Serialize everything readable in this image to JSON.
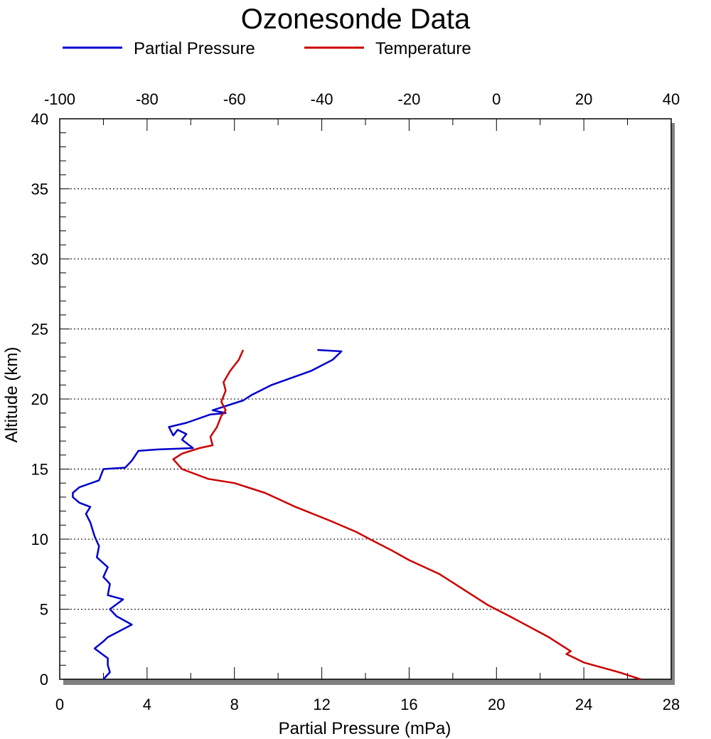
{
  "chart_data": {
    "type": "line",
    "title": "Ozonesonde Data",
    "xlabel_bottom": "Partial Pressure (mPa)",
    "ylabel": "Altitude (km)",
    "xlim_bottom": [
      0,
      28
    ],
    "xticks_bottom": [
      "0",
      "4",
      "8",
      "12",
      "16",
      "20",
      "24",
      "28"
    ],
    "xlim_top": [
      -100,
      40
    ],
    "xticks_top": [
      "-100",
      "-80",
      "-60",
      "-40",
      "-20",
      "0",
      "20",
      "40"
    ],
    "ylim": [
      0,
      40
    ],
    "yticks": [
      "0",
      "5",
      "10",
      "15",
      "20",
      "25",
      "30",
      "35",
      "40"
    ],
    "grid": "horizontal dotted at major y ticks",
    "legend": "top",
    "series": [
      {
        "name": "Partial Pressure",
        "axis": "bottom",
        "color": "#0000cc",
        "points": [
          [
            2.0,
            0.0
          ],
          [
            2.3,
            0.5
          ],
          [
            2.2,
            1.0
          ],
          [
            2.2,
            1.5
          ],
          [
            1.6,
            2.2
          ],
          [
            2.0,
            2.7
          ],
          [
            2.2,
            3.0
          ],
          [
            3.3,
            3.9
          ],
          [
            2.6,
            4.5
          ],
          [
            2.3,
            5.0
          ],
          [
            2.9,
            5.7
          ],
          [
            2.2,
            6.0
          ],
          [
            2.3,
            6.8
          ],
          [
            2.0,
            7.3
          ],
          [
            2.2,
            8.0
          ],
          [
            1.7,
            8.7
          ],
          [
            1.8,
            9.5
          ],
          [
            1.6,
            10.2
          ],
          [
            1.4,
            11.2
          ],
          [
            1.2,
            11.8
          ],
          [
            1.4,
            12.3
          ],
          [
            0.9,
            12.6
          ],
          [
            0.6,
            13.0
          ],
          [
            0.6,
            13.3
          ],
          [
            0.9,
            13.7
          ],
          [
            1.8,
            14.2
          ],
          [
            2.0,
            15.0
          ],
          [
            3.0,
            15.1
          ],
          [
            3.3,
            15.6
          ],
          [
            3.6,
            16.3
          ],
          [
            4.5,
            16.4
          ],
          [
            6.1,
            16.5
          ],
          [
            5.6,
            17.1
          ],
          [
            5.8,
            17.5
          ],
          [
            5.4,
            17.8
          ],
          [
            5.2,
            17.4
          ],
          [
            5.0,
            18.0
          ],
          [
            5.8,
            18.3
          ],
          [
            6.9,
            18.9
          ],
          [
            7.6,
            19.0
          ],
          [
            7.0,
            19.2
          ],
          [
            8.4,
            19.9
          ],
          [
            8.8,
            20.3
          ],
          [
            9.7,
            21.0
          ],
          [
            11.5,
            22.0
          ],
          [
            12.5,
            22.8
          ],
          [
            12.9,
            23.4
          ],
          [
            11.8,
            23.5
          ]
        ]
      },
      {
        "name": "Temperature",
        "axis": "top",
        "color": "#cc0000",
        "points": [
          [
            33.0,
            0.0
          ],
          [
            28.0,
            0.5
          ],
          [
            20.0,
            1.2
          ],
          [
            16.0,
            1.8
          ],
          [
            17.0,
            2.0
          ],
          [
            16.0,
            2.2
          ],
          [
            12.0,
            3.0
          ],
          [
            6.0,
            4.0
          ],
          [
            3.0,
            4.5
          ],
          [
            -2.0,
            5.3
          ],
          [
            -7.0,
            6.3
          ],
          [
            -13.0,
            7.5
          ],
          [
            -20.0,
            8.5
          ],
          [
            -24.0,
            9.2
          ],
          [
            -29.0,
            10.0
          ],
          [
            -32.0,
            10.5
          ],
          [
            -38.0,
            11.3
          ],
          [
            -46.0,
            12.3
          ],
          [
            -53.0,
            13.3
          ],
          [
            -60.0,
            14.0
          ],
          [
            -66.0,
            14.3
          ],
          [
            -72.0,
            15.0
          ],
          [
            -74.0,
            15.7
          ],
          [
            -72.0,
            16.1
          ],
          [
            -68.0,
            16.5
          ],
          [
            -65.0,
            16.7
          ],
          [
            -65.5,
            17.3
          ],
          [
            -64.0,
            18.0
          ],
          [
            -63.0,
            18.8
          ],
          [
            -62.0,
            19.2
          ],
          [
            -63.0,
            19.8
          ],
          [
            -62.0,
            20.6
          ],
          [
            -62.5,
            21.2
          ],
          [
            -61.0,
            22.0
          ],
          [
            -59.0,
            22.8
          ],
          [
            -58.0,
            23.5
          ]
        ]
      }
    ]
  }
}
